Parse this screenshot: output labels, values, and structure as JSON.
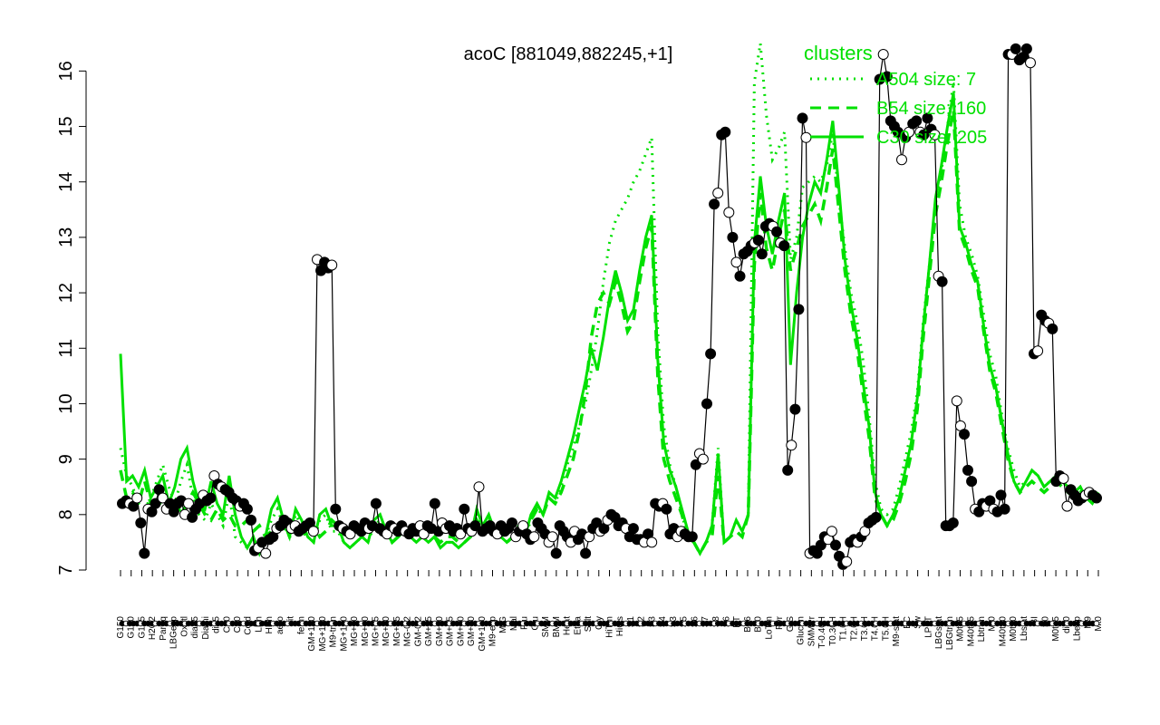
{
  "chart_data": {
    "type": "line",
    "title": "acoC [881049,882245,+1]",
    "xlabel": "",
    "ylabel": "",
    "ylim": [
      7,
      16.3
    ],
    "yticks": [
      7,
      8,
      9,
      10,
      11,
      12,
      13,
      14,
      15,
      16
    ],
    "grid": false,
    "legend_position": "top-right",
    "legend": {
      "title": "clusters",
      "entries": [
        {
          "label": "A504 size: 7",
          "style": "dotted"
        },
        {
          "label": "B54 size: 160",
          "style": "dashed"
        },
        {
          "label": "C30 size: 205",
          "style": "solid"
        }
      ]
    },
    "colors": {
      "clusters": "#00e000",
      "series": "#000000",
      "points": "#000000"
    },
    "x_tick_labels": [
      "G150",
      "G180",
      "G135",
      "H2O2",
      "Paraq",
      "LBGexp",
      "Oxctl",
      "dia15",
      "Diami",
      "dia5",
      "C90",
      "C30",
      "Cold",
      "LPh",
      "HPh",
      "aero",
      "nit",
      "ferm",
      "GM+150",
      "MG+150",
      "M9-tran",
      "MG+120",
      "MG+90",
      "MG+60",
      "MG+45",
      "MG+30",
      "MG+15",
      "MG-0.2",
      "GM-0.2",
      "GM+15",
      "GM+30",
      "GM+45",
      "GM+60",
      "GM+90",
      "GM+120",
      "M9-exp",
      "M/G",
      "Mal",
      "Fru",
      "Glu",
      "SMM",
      "BMM",
      "Heat",
      "Etha",
      "Salt",
      "Gly",
      "HiTm",
      "HiOs",
      "S1",
      "S2",
      "S3",
      "S4",
      "S3",
      "S5",
      "S6",
      "S7",
      "S8",
      "S6",
      "BT",
      "B36",
      "B60",
      "LoTm",
      "Pyr",
      "G/S",
      "Glucon",
      "SMMPr",
      "T-0.40H",
      "T0.30H",
      "T1.0H",
      "T2.0H",
      "T3.0H",
      "T4.0H",
      "T5.0H",
      "M9-stat",
      "BC",
      "Sw",
      "LPhT",
      "LBGstat",
      "LBGtran",
      "M0t45",
      "M40t45",
      "Lbtran",
      "Mt0",
      "M40t90",
      "M0t90",
      "Lbstat",
      "BI",
      "S0",
      "M0t45",
      "dia0",
      "Lbexp",
      "M9",
      "Mt0"
    ],
    "series": [
      {
        "name": "",
        "y": [
          8.2,
          8.25,
          8.2,
          8.15,
          8.3,
          7.85,
          7.3,
          8.1,
          8.05,
          8.2,
          8.45,
          8.3,
          8.1,
          8.2,
          8.05,
          8.2,
          8.25,
          8.0,
          8.2,
          7.95,
          8.1,
          8.2,
          8.35,
          8.25,
          8.3,
          8.7,
          8.55,
          8.5,
          8.45,
          8.4,
          8.3,
          8.25,
          8.15,
          8.2,
          8.1,
          7.9,
          7.35,
          7.4,
          7.5,
          7.3,
          7.55,
          7.6,
          7.75,
          7.8,
          7.9,
          7.85,
          7.75,
          7.8,
          7.7,
          7.75,
          7.8,
          7.85,
          7.7,
          12.6,
          12.4,
          12.55,
          12.45,
          12.5,
          8.1,
          7.8,
          7.75,
          7.7,
          7.65,
          7.8,
          7.75,
          7.7,
          7.85,
          7.75,
          7.8,
          8.2,
          7.75,
          7.7,
          7.65,
          7.8,
          7.75,
          7.7,
          7.8,
          7.7,
          7.65,
          7.75,
          7.7,
          7.8,
          7.65,
          7.8,
          7.75,
          8.2,
          7.7,
          7.85,
          7.75,
          7.8,
          7.7,
          7.75,
          7.65,
          8.1,
          7.75,
          7.7,
          7.8,
          8.5,
          7.7,
          7.75,
          7.8,
          7.7,
          7.65,
          7.8,
          7.7,
          7.75,
          7.85,
          7.6,
          7.7,
          7.8,
          7.65,
          7.55,
          7.6,
          7.85,
          7.75,
          7.65,
          7.5,
          7.6,
          7.3,
          7.8,
          7.7,
          7.6,
          7.5,
          7.7,
          7.55,
          7.65,
          7.3,
          7.6,
          7.75,
          7.85,
          7.7,
          7.75,
          7.9,
          8.0,
          7.95,
          7.8,
          7.85,
          7.75,
          7.6,
          7.75,
          7.55,
          7.55,
          7.5,
          7.65,
          7.5,
          8.2,
          8.15,
          8.2,
          8.1,
          7.65,
          7.75,
          7.6,
          7.7,
          7.65,
          7.6,
          7.6,
          8.9,
          9.1,
          9.0,
          10.0,
          10.9,
          13.6,
          13.8,
          14.85,
          14.9,
          13.45,
          13.0,
          12.55,
          12.3,
          12.7,
          12.75,
          12.85,
          12.9,
          12.95,
          12.7,
          13.2,
          13.25,
          13.2,
          13.1,
          12.9,
          12.85,
          8.8,
          9.25,
          9.9,
          11.7,
          15.15,
          14.8,
          7.3,
          7.35,
          7.3,
          7.45,
          7.6,
          7.55,
          7.7,
          7.45,
          7.25,
          7.1,
          7.15,
          7.5,
          7.55,
          7.5,
          7.6,
          7.7,
          7.85,
          7.9,
          7.95,
          15.85,
          16.3,
          15.9,
          15.1,
          15.0,
          14.9,
          14.4,
          14.8,
          14.9,
          15.05,
          15.1,
          14.9,
          14.85,
          15.15,
          14.95,
          14.85,
          12.3,
          12.2,
          7.8,
          7.8,
          7.85,
          10.05,
          9.6,
          9.45,
          8.8,
          8.6,
          8.1,
          8.05,
          8.2,
          8.15,
          8.25,
          8.1,
          8.05,
          8.35,
          8.1,
          16.3,
          16.3,
          16.4,
          16.2,
          16.25,
          16.4,
          16.15,
          10.9,
          10.95,
          11.6,
          11.5,
          11.45,
          11.35,
          8.6,
          8.7,
          8.65,
          8.15,
          8.45,
          8.35,
          8.25,
          8.3,
          8.35,
          8.4,
          8.35,
          8.3
        ]
      }
    ],
    "clusters": [
      {
        "name": "A504 size: 7",
        "style": "dotted",
        "y": [
          9.2,
          8.7,
          8.5,
          8.2,
          8.1,
          8.3,
          8.6,
          8.9,
          8.5,
          8.2,
          8.6,
          8.9,
          8.3,
          8.0,
          7.9,
          8.2,
          8.0,
          7.8,
          8.4,
          7.6,
          7.5,
          7.4,
          7.6,
          7.3,
          7.6,
          7.9,
          8.1,
          7.8,
          7.6,
          8.0,
          7.8,
          7.6,
          7.5,
          7.9,
          8.0,
          7.7,
          7.7,
          7.5,
          7.4,
          7.5,
          7.6,
          7.5,
          7.8,
          7.9,
          7.7,
          7.5,
          7.6,
          7.7,
          7.6,
          7.5,
          7.6,
          7.5,
          7.6,
          7.4,
          7.5,
          7.5,
          7.4,
          7.5,
          7.6,
          8.0,
          7.8,
          7.9,
          7.7,
          7.6,
          7.5,
          7.6,
          7.7,
          7.6,
          7.9,
          8.1,
          8.0,
          8.3,
          8.2,
          8.5,
          8.9,
          9.2,
          9.6,
          10.0,
          10.6,
          11.3,
          12.2,
          12.9,
          13.3,
          13.5,
          13.7,
          14.0,
          14.2,
          14.5,
          14.8,
          11.3,
          9.6,
          8.9,
          8.5,
          8.0,
          7.6,
          7.5,
          7.3,
          7.5,
          7.8,
          9.2,
          7.5,
          7.6,
          7.9,
          7.7,
          8.0,
          15.8,
          16.5,
          15.2,
          14.4,
          14.6,
          14.9,
          12.6,
          13.0,
          13.9,
          14.0,
          14.1,
          14.0,
          14.3,
          14.9,
          13.7,
          12.8,
          12.0,
          11.5,
          10.8,
          9.8,
          8.6,
          8.1,
          8.0,
          8.1,
          8.5,
          9.0,
          9.5,
          10.2,
          11.5,
          12.5,
          13.6,
          14.2,
          15.0,
          15.8,
          13.6,
          13.0,
          12.7,
          12.3,
          11.6,
          10.9,
          10.5,
          9.8,
          9.2,
          8.8,
          8.5,
          8.6,
          8.8,
          8.7,
          8.5,
          8.6,
          8.7,
          8.6,
          8.5,
          8.4,
          8.5,
          8.3,
          8.2,
          8.4
        ]
      },
      {
        "name": "B54 size: 160",
        "style": "dashed",
        "y": [
          8.8,
          8.3,
          8.4,
          8.2,
          8.6,
          8.2,
          8.1,
          8.3,
          8.1,
          8.3,
          8.0,
          8.2,
          8.4,
          8.2,
          8.0,
          7.9,
          8.1,
          7.9,
          8.0,
          7.8,
          7.8,
          7.9,
          7.7,
          7.8,
          7.6,
          7.7,
          7.8,
          7.9,
          7.6,
          7.7,
          7.7,
          7.6,
          7.8,
          7.6,
          7.7,
          7.9,
          7.8,
          7.8,
          7.6,
          7.7,
          7.6,
          7.7,
          7.8,
          7.7,
          7.7,
          7.5,
          7.6,
          7.7,
          7.7,
          7.6,
          7.7,
          7.7,
          7.6,
          7.5,
          7.6,
          7.6,
          7.5,
          7.5,
          7.6,
          7.9,
          7.7,
          7.8,
          7.7,
          7.6,
          7.5,
          7.6,
          7.8,
          7.8,
          7.9,
          8.1,
          8.0,
          8.3,
          8.2,
          8.4,
          8.7,
          9.0,
          9.5,
          10.2,
          11.2,
          11.8,
          12.0,
          11.8,
          12.2,
          11.8,
          11.3,
          11.5,
          12.2,
          12.8,
          13.2,
          10.5,
          9.0,
          8.6,
          8.3,
          8.0,
          7.6,
          7.5,
          7.3,
          7.5,
          7.6,
          8.7,
          7.5,
          7.6,
          7.7,
          7.6,
          8.0,
          12.5,
          13.8,
          12.8,
          12.4,
          13.0,
          13.5,
          12.4,
          12.8,
          13.2,
          13.4,
          13.6,
          13.3,
          13.9,
          14.6,
          13.5,
          12.4,
          11.6,
          11.0,
          10.2,
          9.4,
          8.3,
          8.0,
          7.8,
          7.9,
          8.2,
          8.6,
          9.1,
          9.9,
          11.2,
          12.3,
          13.4,
          14.0,
          14.7,
          15.3,
          13.1,
          12.8,
          12.4,
          12.1,
          11.3,
          10.6,
          10.2,
          9.6,
          9.0,
          8.6,
          8.4,
          8.5,
          8.6,
          8.5,
          8.4,
          8.5,
          8.6,
          8.5,
          8.4,
          8.3,
          8.4,
          8.2,
          8.3,
          8.4
        ]
      },
      {
        "name": "C30 size: 205",
        "style": "solid",
        "y": [
          10.9,
          8.6,
          8.7,
          8.5,
          8.8,
          8.3,
          8.5,
          8.7,
          8.2,
          8.5,
          9.0,
          9.2,
          8.6,
          8.2,
          8.1,
          8.6,
          8.2,
          8.0,
          8.7,
          8.0,
          7.6,
          7.4,
          7.6,
          7.3,
          7.6,
          8.1,
          8.3,
          7.9,
          7.6,
          8.1,
          7.9,
          7.6,
          7.5,
          8.0,
          8.1,
          7.8,
          7.8,
          7.5,
          7.4,
          7.5,
          7.6,
          7.5,
          7.9,
          8.0,
          7.7,
          7.5,
          7.6,
          7.7,
          7.6,
          7.5,
          7.6,
          7.5,
          7.6,
          7.4,
          7.5,
          7.5,
          7.4,
          7.5,
          7.6,
          8.1,
          7.8,
          8.0,
          7.7,
          7.6,
          7.5,
          7.6,
          7.7,
          7.6,
          8.0,
          8.2,
          8.0,
          8.4,
          8.3,
          8.6,
          9.0,
          9.4,
          9.9,
          10.4,
          11.0,
          10.6,
          11.2,
          11.9,
          12.4,
          12.0,
          11.5,
          11.7,
          12.4,
          13.0,
          13.4,
          10.8,
          9.3,
          8.8,
          8.5,
          8.1,
          7.7,
          7.5,
          7.3,
          7.5,
          7.8,
          9.1,
          7.5,
          7.6,
          7.9,
          7.7,
          8.0,
          12.9,
          14.1,
          13.2,
          12.7,
          13.3,
          13.8,
          10.7,
          12.0,
          13.0,
          13.6,
          14.0,
          13.8,
          14.4,
          15.1,
          13.9,
          12.6,
          11.8,
          11.2,
          10.4,
          9.6,
          8.4,
          8.0,
          7.8,
          8.0,
          8.3,
          8.8,
          9.3,
          10.1,
          11.4,
          12.5,
          13.7,
          14.3,
          15.0,
          15.6,
          13.2,
          12.9,
          12.5,
          12.2,
          11.4,
          10.7,
          10.3,
          9.7,
          9.1,
          8.6,
          8.4,
          8.6,
          8.8,
          8.7,
          8.5,
          8.6,
          8.7,
          8.6,
          8.5,
          8.4,
          8.5,
          8.3,
          8.2,
          8.4
        ]
      }
    ]
  }
}
